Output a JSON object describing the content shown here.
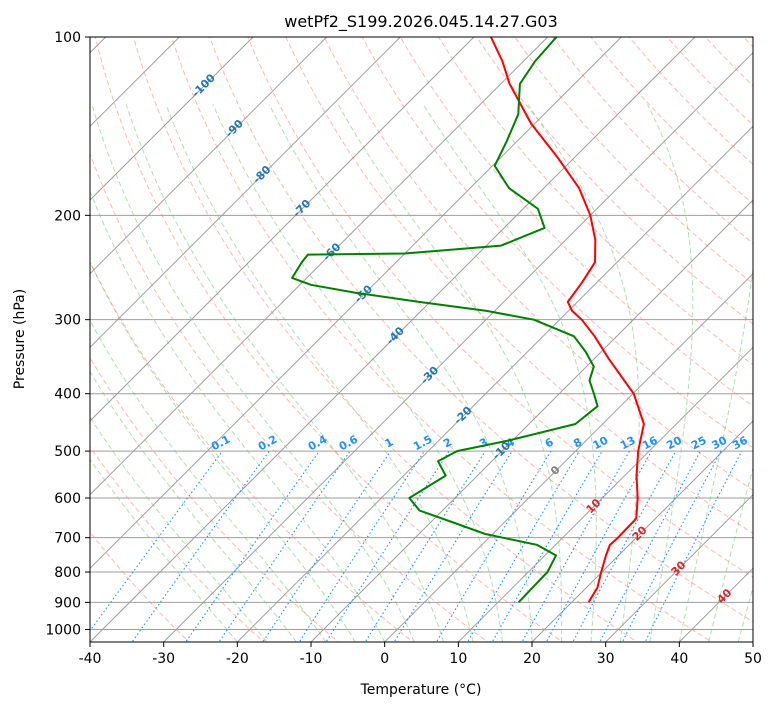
{
  "chart_data": {
    "type": "line",
    "title": "wetPf2_S199.2026.045.14.27.G03",
    "xlabel": "Temperature (°C)",
    "ylabel": "Pressure (hPa)",
    "xlim": [
      -40,
      50
    ],
    "ylim": [
      1050,
      100
    ],
    "y_scale": "log",
    "skew": true,
    "grid": true,
    "x_ticks": [
      -40,
      -30,
      -20,
      -10,
      0,
      10,
      20,
      30,
      40,
      50
    ],
    "y_ticks": [
      100,
      200,
      300,
      400,
      500,
      600,
      700,
      800,
      900,
      1000
    ],
    "series": [
      {
        "role": "temperature",
        "color": "#ff0000",
        "points": [
          {
            "p": 900,
            "t": 22.3
          },
          {
            "p": 850,
            "t": 21.5
          },
          {
            "p": 800,
            "t": 19.9
          },
          {
            "p": 750,
            "t": 18.3
          },
          {
            "p": 720,
            "t": 17.4
          },
          {
            "p": 700,
            "t": 17.5
          },
          {
            "p": 650,
            "t": 17.4
          },
          {
            "p": 600,
            "t": 14.8
          },
          {
            "p": 550,
            "t": 11.6
          },
          {
            "p": 500,
            "t": 8.5
          },
          {
            "p": 450,
            "t": 5.6
          },
          {
            "p": 400,
            "t": 0.1
          },
          {
            "p": 350,
            "t": -7.9
          },
          {
            "p": 320,
            "t": -13.0
          },
          {
            "p": 300,
            "t": -17.0
          },
          {
            "p": 290,
            "t": -19.5
          },
          {
            "p": 280,
            "t": -21.3
          },
          {
            "p": 260,
            "t": -22.0
          },
          {
            "p": 240,
            "t": -23.0
          },
          {
            "p": 220,
            "t": -26.0
          },
          {
            "p": 200,
            "t": -30.0
          },
          {
            "p": 180,
            "t": -35.2
          },
          {
            "p": 160,
            "t": -42.2
          },
          {
            "p": 140,
            "t": -50.5
          },
          {
            "p": 120,
            "t": -58.8
          },
          {
            "p": 110,
            "t": -62.8
          },
          {
            "p": 100,
            "t": -67.7
          }
        ]
      },
      {
        "role": "dewpoint",
        "color": "#008000",
        "points": [
          {
            "p": 900,
            "t": 12.8
          },
          {
            "p": 850,
            "t": 12.7
          },
          {
            "p": 800,
            "t": 12.6
          },
          {
            "p": 750,
            "t": 11.5
          },
          {
            "p": 720,
            "t": 7.5
          },
          {
            "p": 690,
            "t": -1.0
          },
          {
            "p": 660,
            "t": -6.9
          },
          {
            "p": 630,
            "t": -13.1
          },
          {
            "p": 600,
            "t": -16.2
          },
          {
            "p": 550,
            "t": -14.3
          },
          {
            "p": 520,
            "t": -17.3
          },
          {
            "p": 500,
            "t": -16.1
          },
          {
            "p": 480,
            "t": -10.6
          },
          {
            "p": 450,
            "t": -3.7
          },
          {
            "p": 420,
            "t": -3.1
          },
          {
            "p": 400,
            "t": -5.3
          },
          {
            "p": 380,
            "t": -7.7
          },
          {
            "p": 360,
            "t": -9.0
          },
          {
            "p": 340,
            "t": -12.1
          },
          {
            "p": 320,
            "t": -15.8
          },
          {
            "p": 300,
            "t": -23.5
          },
          {
            "p": 290,
            "t": -31.1
          },
          {
            "p": 280,
            "t": -41.5
          },
          {
            "p": 270,
            "t": -51.5
          },
          {
            "p": 262,
            "t": -58.5
          },
          {
            "p": 255,
            "t": -62.0
          },
          {
            "p": 240,
            "t": -62.8
          },
          {
            "p": 233,
            "t": -63.0
          },
          {
            "p": 232,
            "t": -50.0
          },
          {
            "p": 225,
            "t": -38.0
          },
          {
            "p": 210,
            "t": -34.5
          },
          {
            "p": 195,
            "t": -38.0
          },
          {
            "p": 180,
            "t": -44.7
          },
          {
            "p": 165,
            "t": -49.7
          },
          {
            "p": 150,
            "t": -51.4
          },
          {
            "p": 135,
            "t": -53.5
          },
          {
            "p": 120,
            "t": -57.4
          },
          {
            "p": 110,
            "t": -58.4
          },
          {
            "p": 100,
            "t": -58.8
          }
        ]
      }
    ],
    "isotherm_labels": [
      {
        "t": -100,
        "p": 121
      },
      {
        "t": -90,
        "p": 143
      },
      {
        "t": -80,
        "p": 171
      },
      {
        "t": -70,
        "p": 195
      },
      {
        "t": -60,
        "p": 231
      },
      {
        "t": -50,
        "p": 272
      },
      {
        "t": -40,
        "p": 320
      },
      {
        "t": -30,
        "p": 373
      },
      {
        "t": -20,
        "p": 436
      }
    ],
    "mixing_ratio_labels": [
      "0.1",
      "0.2",
      "0.4",
      "0.6",
      "1",
      "1.5",
      "2",
      "3",
      "4",
      "6",
      "8",
      "10",
      "13",
      "16",
      "20",
      "25",
      "30",
      "36"
    ],
    "mixing_ratio_values": [
      0.1,
      0.2,
      0.4,
      0.6,
      1,
      1.5,
      2,
      3,
      4,
      6,
      8,
      10,
      13,
      16,
      20,
      25,
      30,
      36
    ],
    "extra_labels": [
      {
        "text": "-10",
        "t": -10,
        "p": 500,
        "color": "#1f77b4"
      },
      {
        "text": "0",
        "t": 0,
        "p": 540,
        "color": "#808080"
      },
      {
        "text": "10",
        "t": 10,
        "p": 620,
        "color": "#d62728"
      },
      {
        "text": "20",
        "t": 20,
        "p": 690,
        "color": "#d62728"
      },
      {
        "text": "30",
        "t": 30,
        "p": 790,
        "color": "#d62728"
      },
      {
        "text": "40",
        "t": 40,
        "p": 880,
        "color": "#d62728"
      }
    ],
    "colors": {
      "isotherm_label": "#1f77b4",
      "mixing_ratio": "#1e90ff",
      "dry_adiabat": "#fa8072",
      "moist_adiabat": "#66bb6a",
      "grid": "#9e9e9e"
    }
  }
}
